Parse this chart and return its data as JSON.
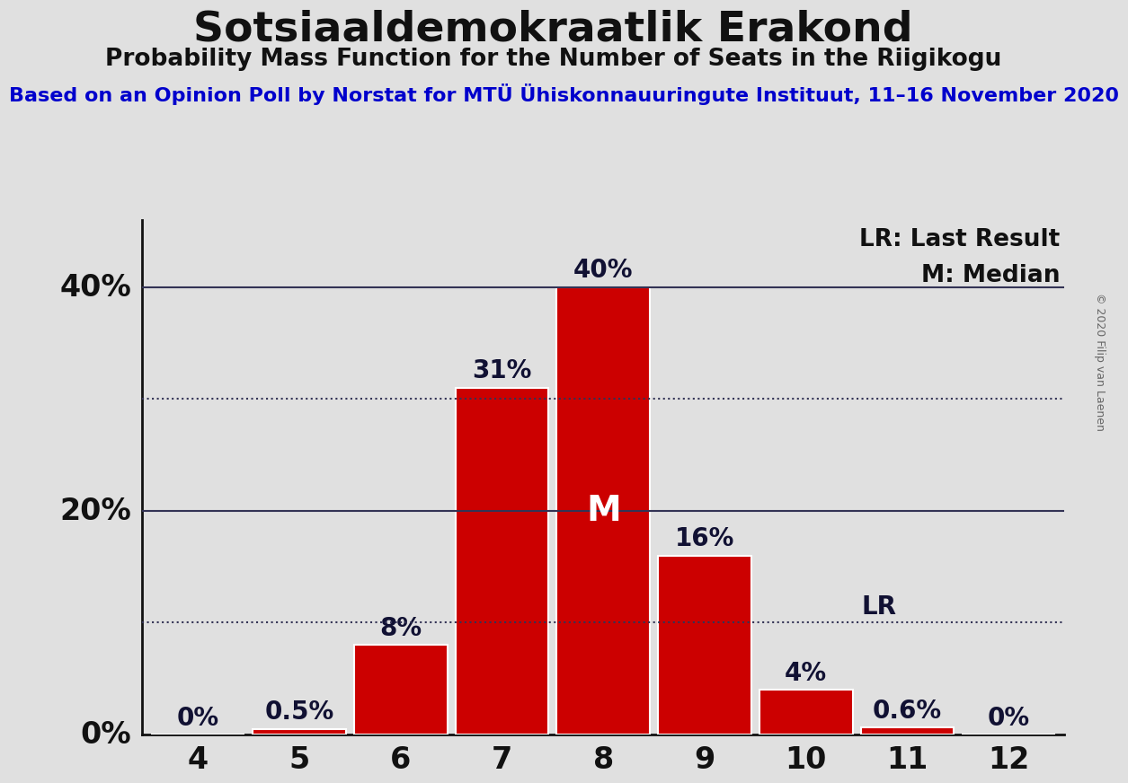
{
  "title": "Sotsiaaldemokraatlik Erakond",
  "subtitle": "Probability Mass Function for the Number of Seats in the Riigikogu",
  "source_line": "Based on an Opinion Poll by Norstat for MTÜ Ühiskonnauuringute Instituut, 11–16 November 2020",
  "copyright": "© 2020 Filip van Laenen",
  "seats": [
    4,
    5,
    6,
    7,
    8,
    9,
    10,
    11,
    12
  ],
  "probabilities": [
    0.0,
    0.5,
    8.0,
    31.0,
    40.0,
    16.0,
    4.0,
    0.6,
    0.0
  ],
  "bar_color": "#cc0000",
  "bar_edge_color": "#ffffff",
  "median_seat": 8,
  "last_result_seat": 10,
  "background_color": "#e0e0e0",
  "title_fontsize": 34,
  "subtitle_fontsize": 19,
  "source_fontsize": 16,
  "bar_label_fontsize": 20,
  "axis_tick_fontsize": 24,
  "legend_fontsize": 19,
  "ylim": [
    0,
    46
  ],
  "ytick_labels_shown": [
    "0%",
    "20%",
    "40%"
  ],
  "ytick_vals_shown": [
    0,
    20,
    40
  ],
  "ytick_dotted": [
    10,
    30
  ],
  "ytick_solid": [
    20,
    40
  ],
  "grid_color": "#333355",
  "source_color": "#0000cc",
  "title_color": "#111111",
  "axis_color": "#111111",
  "label_color": "#111133"
}
